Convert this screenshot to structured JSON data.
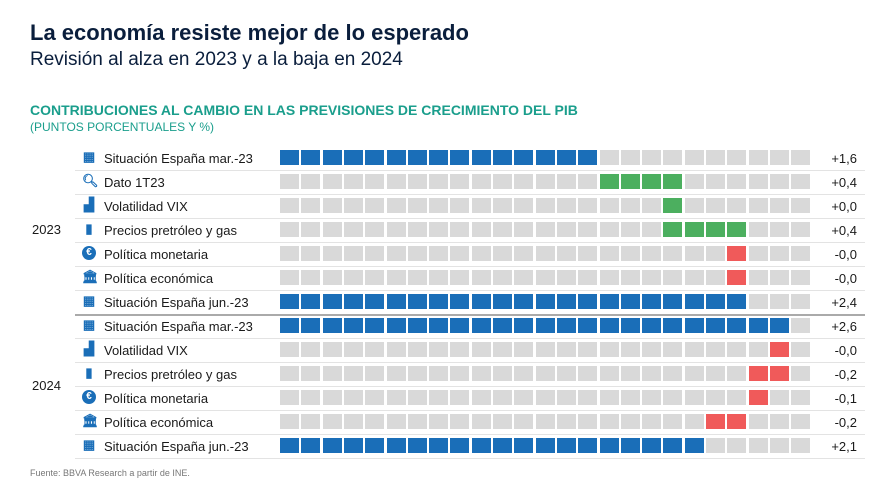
{
  "header": {
    "title": "La economía resiste mejor de lo esperado",
    "subtitle": "Revisión al alza en 2023 y a la baja en 2024"
  },
  "chart_data": {
    "type": "bar",
    "title": "CONTRIBUCIONES AL CAMBIO EN LAS PREVISIONES DE CRECIMIENTO DEL PIB",
    "subtitle": "(PUNTOS PORCENTUALES Y %)",
    "squares_per_row": 25,
    "colors": {
      "total": "#1a6eb8",
      "positive": "#4caf5f",
      "negative": "#f05a5a",
      "empty": "#d9d9d9"
    },
    "groups": [
      {
        "year": "2023",
        "rows": [
          {
            "label": "Situación España mar.-23",
            "icon": "calendar-icon",
            "value": "+1,6",
            "kind": "total",
            "start": 0,
            "count": 15
          },
          {
            "label": "Dato 1T23",
            "icon": "search-icon",
            "value": "+0,4",
            "kind": "positive",
            "start": 15,
            "count": 4
          },
          {
            "label": "Volatilidad VIX",
            "icon": "bar-chart-icon",
            "value": "+0,0",
            "kind": "positive",
            "start": 18,
            "count": 1
          },
          {
            "label": "Precios pretróleo y gas",
            "icon": "fuel-icon",
            "value": "+0,4",
            "kind": "positive",
            "start": 18,
            "count": 4
          },
          {
            "label": "Política monetaria",
            "icon": "euro-icon",
            "value": "-0,0",
            "kind": "negative",
            "start": 21,
            "count": 1
          },
          {
            "label": "Política económica",
            "icon": "bank-icon",
            "value": "-0,0",
            "kind": "negative",
            "start": 21,
            "count": 1
          },
          {
            "label": "Situación España jun.-23",
            "icon": "calendar-icon",
            "value": "+2,4",
            "kind": "total",
            "start": 0,
            "count": 22
          }
        ]
      },
      {
        "year": "2024",
        "rows": [
          {
            "label": "Situación España mar.-23",
            "icon": "calendar-icon",
            "value": "+2,6",
            "kind": "total",
            "start": 0,
            "count": 24
          },
          {
            "label": "Volatilidad VIX",
            "icon": "bar-chart-icon",
            "value": "-0,0",
            "kind": "negative",
            "start": 23,
            "count": 1
          },
          {
            "label": "Precios pretróleo y gas",
            "icon": "fuel-icon",
            "value": "-0,2",
            "kind": "negative",
            "start": 22,
            "count": 2
          },
          {
            "label": "Política monetaria",
            "icon": "euro-icon",
            "value": "-0,1",
            "kind": "negative",
            "start": 22,
            "count": 1
          },
          {
            "label": "Política económica",
            "icon": "bank-icon",
            "value": "-0,2",
            "kind": "negative",
            "start": 20,
            "count": 2
          },
          {
            "label": "Situación España jun.-23",
            "icon": "calendar-icon",
            "value": "+2,1",
            "kind": "total",
            "start": 0,
            "count": 20
          }
        ]
      }
    ]
  },
  "footer": {
    "source": "Fuente: BBVA Research a partir de INE."
  }
}
